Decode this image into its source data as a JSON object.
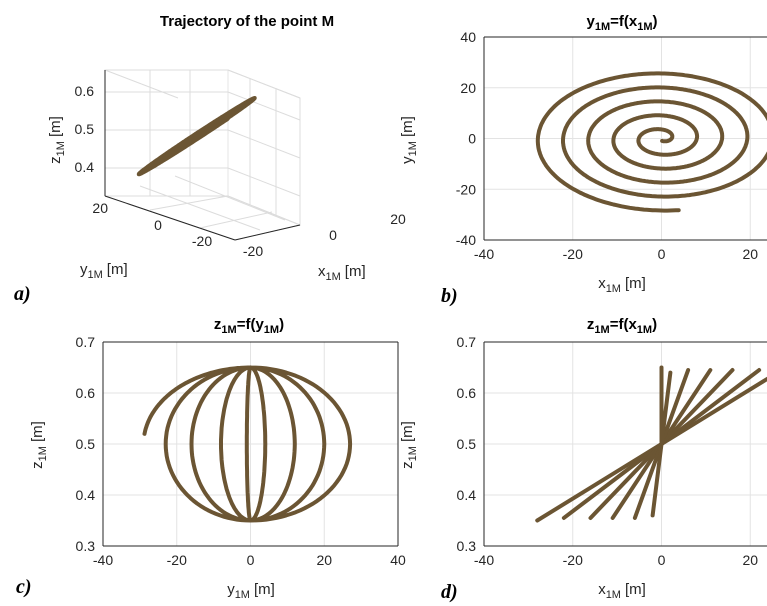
{
  "colors": {
    "curve": "#6b5533",
    "axis": "#262626",
    "grid": "#e3e3e3"
  },
  "panels": {
    "a": {
      "letter": "a)",
      "title": "Trajectory of the point M",
      "xlabel": "x",
      "ylabel": "y",
      "zlabel": "z",
      "sub": "1M",
      "unit": "[m]",
      "zticks": [
        "0.6",
        "0.5",
        "0.4"
      ],
      "yticks": [
        "20",
        "0",
        "-20"
      ],
      "xticks": [
        "-20",
        "0",
        "20"
      ]
    },
    "b": {
      "letter": "b)",
      "title": "y",
      "title_eq": "=f(x",
      "title_end": ")",
      "sub": "1M",
      "xlabel": "x",
      "ylabel": "y",
      "unit": "[m]"
    },
    "c": {
      "letter": "c)",
      "title": "z",
      "title_eq": "=f(y",
      "title_end": ")",
      "sub": "1M",
      "xlabel": "y",
      "ylabel": "z",
      "unit": "[m]"
    },
    "d": {
      "letter": "d)",
      "title": "z",
      "title_eq": "=f(x",
      "title_end": ")",
      "sub": "1M",
      "xlabel": "x",
      "ylabel": "z",
      "unit": "[m]"
    }
  },
  "chart_data": [
    {
      "panel": "a",
      "type": "line",
      "title": "Trajectory of the point M",
      "xlabel": "x1M [m]",
      "ylabel": "y1M [m]",
      "zlabel": "z1M [m]",
      "zticks": [
        0.4,
        0.5,
        0.6
      ],
      "yticks": [
        -20,
        0,
        20
      ],
      "xticks": [
        -20,
        0,
        20
      ],
      "curve": {
        "radius_start": 28,
        "radius_end": 0,
        "turns": 5,
        "z_center": 0.5,
        "z_amplitude": 0.15
      }
    },
    {
      "panel": "b",
      "type": "line",
      "title": "y1M=f(x1M)",
      "xlabel": "x1M [m]",
      "ylabel": "y1M [m]",
      "xlim": [
        -40,
        40
      ],
      "ylim": [
        -40,
        40
      ],
      "xticks": [
        -40,
        -20,
        0,
        20
      ],
      "yticks": [
        -40,
        -20,
        0,
        20,
        40
      ],
      "grid": true,
      "spiral": {
        "start": [
          4,
          -30
        ],
        "radius_start": 30,
        "radius_end": 1,
        "turns": 5,
        "center": [
          0,
          0
        ]
      }
    },
    {
      "panel": "c",
      "type": "line",
      "title": "z1M=f(y1M)",
      "xlabel": "y1M [m]",
      "ylabel": "z1M [m]",
      "xlim": [
        -40,
        40
      ],
      "ylim": [
        0.3,
        0.7
      ],
      "xticks": [
        -40,
        -20,
        0,
        20,
        40
      ],
      "yticks": [
        0.3,
        0.4,
        0.5,
        0.6,
        0.7
      ],
      "grid": true,
      "meridians_y_amplitude": [
        -29,
        27,
        -23,
        20,
        -16,
        12,
        -8,
        4,
        -1
      ],
      "z_top": 0.65,
      "z_bottom": 0.35,
      "start": [
        -29,
        0.52
      ]
    },
    {
      "panel": "d",
      "type": "line",
      "title": "z1M=f(x1M)",
      "xlabel": "x1M [m]",
      "ylabel": "z1M [m]",
      "xlim": [
        -40,
        40
      ],
      "ylim": [
        0.3,
        0.7
      ],
      "xticks": [
        -40,
        -20,
        0,
        20
      ],
      "yticks": [
        0.3,
        0.4,
        0.5,
        0.6,
        0.7
      ],
      "grid": true,
      "lines": [
        {
          "x1": -28,
          "z1": 0.35,
          "x2": 28,
          "z2": 0.65
        },
        {
          "x1": -22,
          "z1": 0.355,
          "x2": 22,
          "z2": 0.645
        },
        {
          "x1": -16,
          "z1": 0.355,
          "x2": 16,
          "z2": 0.645
        },
        {
          "x1": -11,
          "z1": 0.355,
          "x2": 11,
          "z2": 0.645
        },
        {
          "x1": -6,
          "z1": 0.355,
          "x2": 6,
          "z2": 0.645
        },
        {
          "x1": -2,
          "z1": 0.36,
          "x2": 2,
          "z2": 0.64
        },
        {
          "x1": 0,
          "z1": 0.5,
          "x2": 0,
          "z2": 0.65
        }
      ]
    }
  ]
}
